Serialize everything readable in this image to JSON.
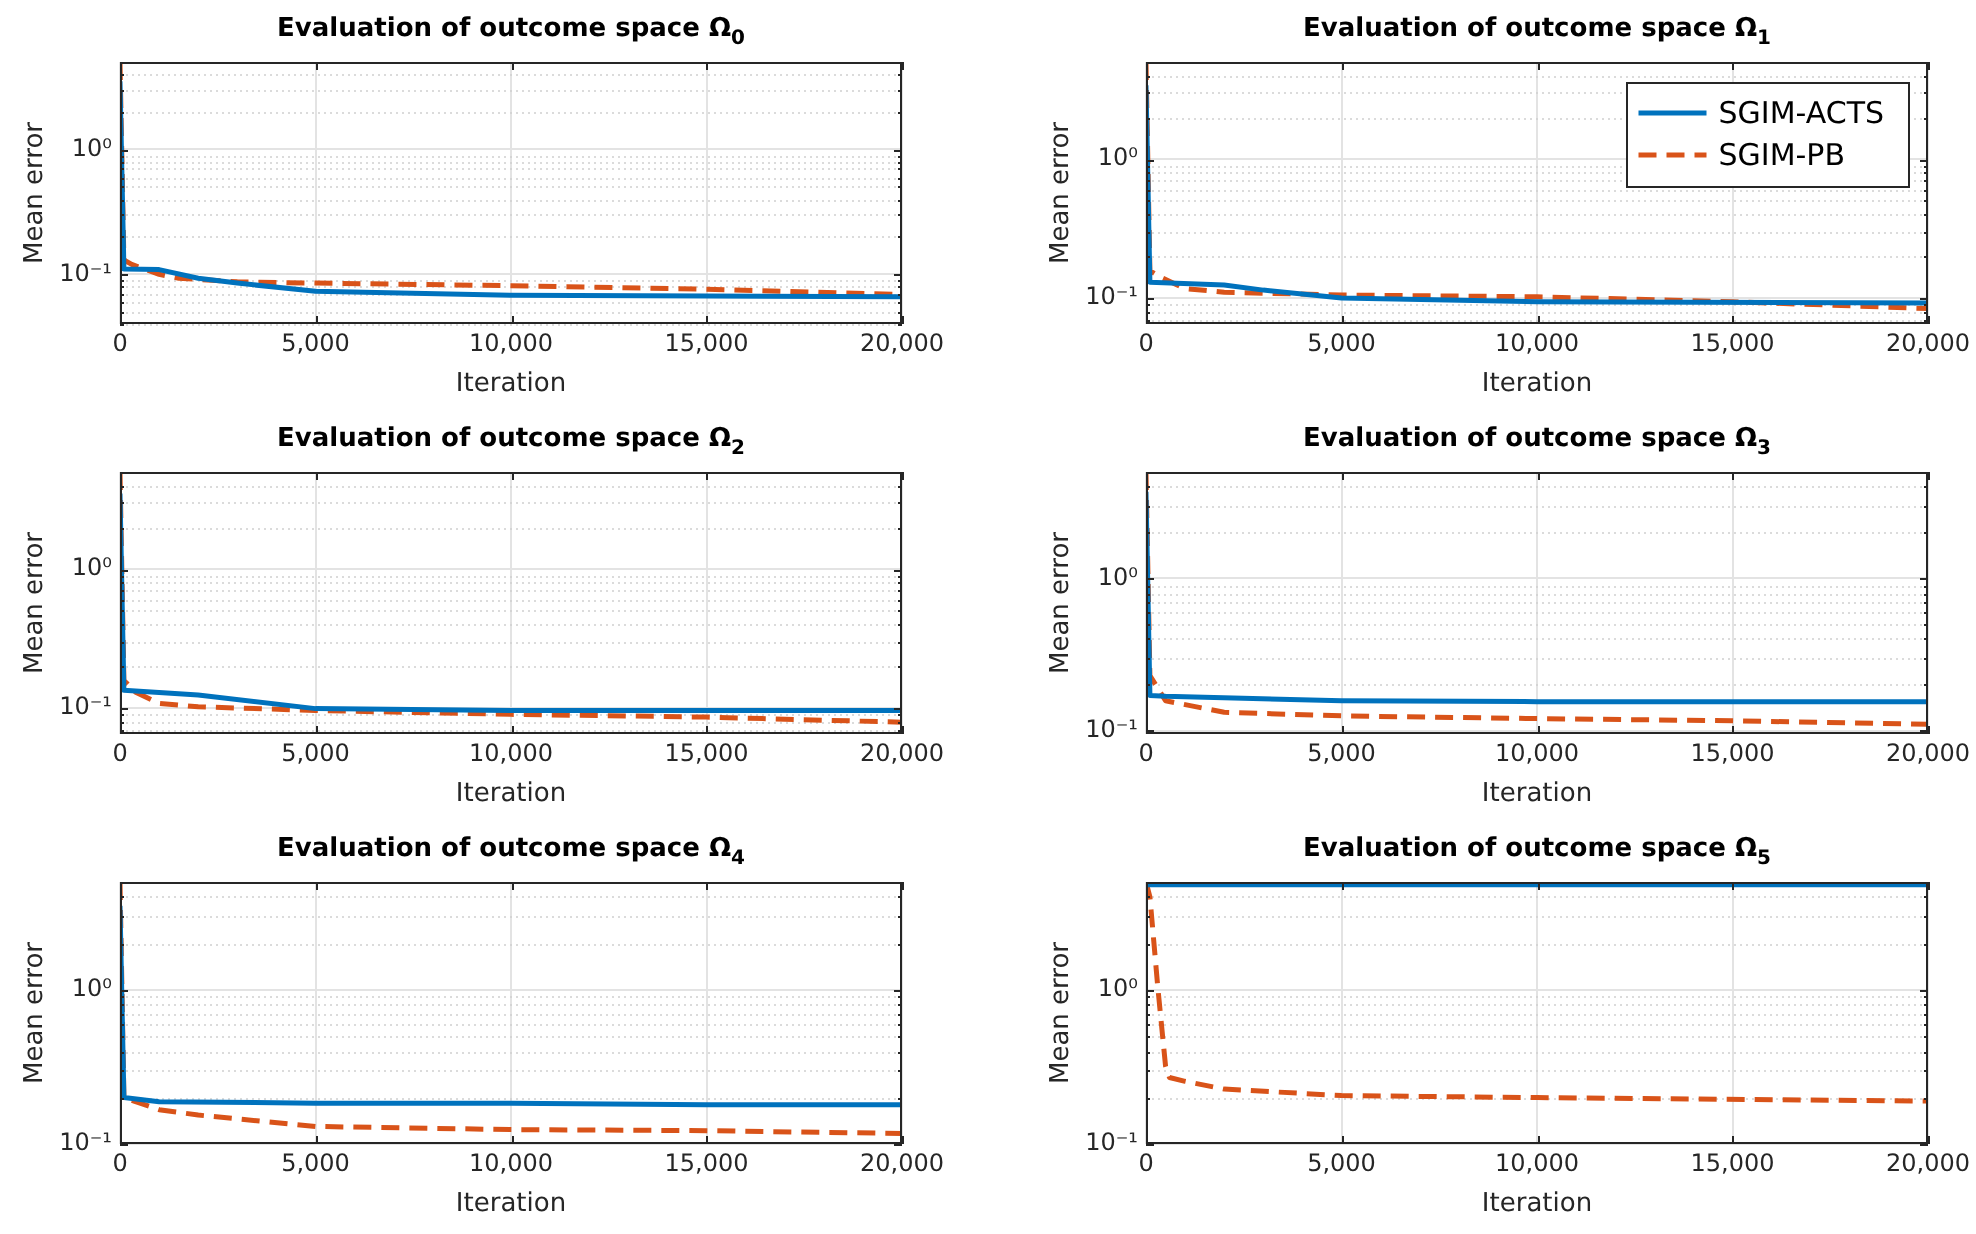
{
  "chart_data": [
    {
      "type": "line",
      "title": "Evaluation of outcome space Ω$_{0}$",
      "xlabel": "Iteration",
      "ylabel": "Mean error",
      "log": true,
      "grid": true,
      "legend": false,
      "xlim": [
        0,
        20000
      ],
      "xticks": [
        {
          "value": 0,
          "label": "0"
        },
        {
          "value": 5000,
          "label": "5,000"
        },
        {
          "value": 10000,
          "label": "10,000"
        },
        {
          "value": 15000,
          "label": "15,000"
        },
        {
          "value": 20000,
          "label": "20,000"
        }
      ],
      "ylim": [
        0.04,
        5
      ],
      "yticks": [
        {
          "value": 0.04,
          "label": null
        },
        {
          "value": 0.05,
          "label": null
        },
        {
          "value": 0.06,
          "label": null
        },
        {
          "value": 0.07,
          "label": null
        },
        {
          "value": 0.08,
          "label": null
        },
        {
          "value": 0.09,
          "label": null
        },
        {
          "value": 0.1,
          "label": "10⁻¹"
        },
        {
          "value": 0.2,
          "label": null
        },
        {
          "value": 0.3,
          "label": null
        },
        {
          "value": 0.4,
          "label": null
        },
        {
          "value": 0.5,
          "label": null
        },
        {
          "value": 0.6,
          "label": null
        },
        {
          "value": 0.7,
          "label": null
        },
        {
          "value": 0.8,
          "label": null
        },
        {
          "value": 0.9,
          "label": null
        },
        {
          "value": 1,
          "label": "10⁰"
        },
        {
          "value": 2,
          "label": null
        },
        {
          "value": 3,
          "label": null
        },
        {
          "value": 4,
          "label": null
        },
        {
          "value": 5,
          "label": null
        }
      ],
      "series": [
        {
          "color": "#0072bd",
          "line_style": "solid",
          "x": [
            0,
            100,
            1000,
            2000,
            3000,
            5000,
            10000,
            15000,
            20000
          ],
          "values": [
            3.5,
            0.11,
            0.109,
            0.093,
            0.085,
            0.073,
            0.068,
            0.067,
            0.066
          ]
        },
        {
          "color": "#d95319",
          "line_style": "dashed",
          "x": [
            0,
            100,
            300,
            1000,
            1500,
            3000,
            5000,
            10000,
            15000,
            20000
          ],
          "values": [
            5,
            0.13,
            0.12,
            0.1,
            0.093,
            0.087,
            0.085,
            0.081,
            0.076,
            0.069
          ]
        }
      ]
    },
    {
      "type": "line",
      "title": "Evaluation of outcome space Ω$_{1}$",
      "xlabel": "Iteration",
      "ylabel": "Mean error",
      "log": true,
      "grid": true,
      "legend": "top right",
      "xlim": [
        0,
        20000
      ],
      "xticks": [
        {
          "value": 0,
          "label": "0"
        },
        {
          "value": 5000,
          "label": "5,000"
        },
        {
          "value": 10000,
          "label": "10,000"
        },
        {
          "value": 15000,
          "label": "15,000"
        },
        {
          "value": 20000,
          "label": "20,000"
        }
      ],
      "ylim": [
        0.065,
        5
      ],
      "yticks": [
        {
          "value": 0.07,
          "label": null
        },
        {
          "value": 0.08,
          "label": null
        },
        {
          "value": 0.09,
          "label": null
        },
        {
          "value": 0.1,
          "label": "10⁻¹"
        },
        {
          "value": 0.2,
          "label": null
        },
        {
          "value": 0.3,
          "label": null
        },
        {
          "value": 0.4,
          "label": null
        },
        {
          "value": 0.5,
          "label": null
        },
        {
          "value": 0.6,
          "label": null
        },
        {
          "value": 0.7,
          "label": null
        },
        {
          "value": 0.8,
          "label": null
        },
        {
          "value": 0.9,
          "label": null
        },
        {
          "value": 1,
          "label": "10⁰"
        },
        {
          "value": 2,
          "label": null
        },
        {
          "value": 3,
          "label": null
        },
        {
          "value": 4,
          "label": null
        },
        {
          "value": 5,
          "label": null
        }
      ],
      "series": [
        {
          "name": "SGIM-ACTS",
          "color": "#0072bd",
          "line_style": "solid",
          "x": [
            0,
            100,
            2000,
            3000,
            5000,
            10000,
            20000
          ],
          "values": [
            3.4,
            0.13,
            0.124,
            0.114,
            0.1,
            0.094,
            0.092
          ]
        },
        {
          "name": "SGIM-PB",
          "color": "#d95319",
          "line_style": "dashed",
          "x": [
            0,
            100,
            400,
            1000,
            2000,
            5000,
            10000,
            15000,
            20000
          ],
          "values": [
            5,
            0.157,
            0.14,
            0.117,
            0.11,
            0.105,
            0.102,
            0.094,
            0.084
          ]
        }
      ]
    },
    {
      "type": "line",
      "title": "Evaluation of outcome space Ω$_{2}$",
      "xlabel": "Iteration",
      "ylabel": "Mean error",
      "log": true,
      "grid": true,
      "legend": false,
      "xlim": [
        0,
        20000
      ],
      "xticks": [
        {
          "value": 0,
          "label": "0"
        },
        {
          "value": 5000,
          "label": "5,000"
        },
        {
          "value": 10000,
          "label": "10,000"
        },
        {
          "value": 15000,
          "label": "15,000"
        },
        {
          "value": 20000,
          "label": "20,000"
        }
      ],
      "ylim": [
        0.065,
        5
      ],
      "yticks": [
        {
          "value": 0.07,
          "label": null
        },
        {
          "value": 0.08,
          "label": null
        },
        {
          "value": 0.09,
          "label": null
        },
        {
          "value": 0.1,
          "label": "10⁻¹"
        },
        {
          "value": 0.2,
          "label": null
        },
        {
          "value": 0.3,
          "label": null
        },
        {
          "value": 0.4,
          "label": null
        },
        {
          "value": 0.5,
          "label": null
        },
        {
          "value": 0.6,
          "label": null
        },
        {
          "value": 0.7,
          "label": null
        },
        {
          "value": 0.8,
          "label": null
        },
        {
          "value": 0.9,
          "label": null
        },
        {
          "value": 1,
          "label": "10⁰"
        },
        {
          "value": 2,
          "label": null
        },
        {
          "value": 3,
          "label": null
        },
        {
          "value": 4,
          "label": null
        },
        {
          "value": 5,
          "label": null
        }
      ],
      "series": [
        {
          "color": "#0072bd",
          "line_style": "solid",
          "x": [
            0,
            100,
            2000,
            5000,
            10000,
            20000
          ],
          "values": [
            3.5,
            0.134,
            0.124,
            0.099,
            0.096,
            0.096
          ]
        },
        {
          "color": "#d95319",
          "line_style": "dashed",
          "x": [
            0,
            100,
            400,
            1000,
            2000,
            5000,
            10000,
            15000,
            20000
          ],
          "values": [
            5,
            0.158,
            0.13,
            0.108,
            0.102,
            0.096,
            0.09,
            0.086,
            0.079
          ]
        }
      ]
    },
    {
      "type": "line",
      "title": "Evaluation of outcome space Ω$_{3}$",
      "xlabel": "Iteration",
      "ylabel": "Mean error",
      "log": true,
      "grid": true,
      "legend": false,
      "xlim": [
        0,
        20000
      ],
      "xticks": [
        {
          "value": 0,
          "label": "0"
        },
        {
          "value": 5000,
          "label": "5,000"
        },
        {
          "value": 10000,
          "label": "10,000"
        },
        {
          "value": 15000,
          "label": "15,000"
        },
        {
          "value": 20000,
          "label": "20,000"
        }
      ],
      "ylim": [
        0.095,
        5
      ],
      "yticks": [
        {
          "value": 0.1,
          "label": "10⁻¹"
        },
        {
          "value": 0.2,
          "label": null
        },
        {
          "value": 0.3,
          "label": null
        },
        {
          "value": 0.4,
          "label": null
        },
        {
          "value": 0.5,
          "label": null
        },
        {
          "value": 0.6,
          "label": null
        },
        {
          "value": 0.7,
          "label": null
        },
        {
          "value": 0.8,
          "label": null
        },
        {
          "value": 0.9,
          "label": null
        },
        {
          "value": 1,
          "label": "10⁰"
        },
        {
          "value": 2,
          "label": null
        },
        {
          "value": 3,
          "label": null
        },
        {
          "value": 4,
          "label": null
        },
        {
          "value": 5,
          "label": null
        }
      ],
      "series": [
        {
          "color": "#0072bd",
          "line_style": "solid",
          "x": [
            0,
            100,
            500,
            5000,
            10000,
            20000
          ],
          "values": [
            3.7,
            0.17,
            0.168,
            0.157,
            0.155,
            0.155
          ]
        },
        {
          "color": "#d95319",
          "line_style": "dashed",
          "x": [
            0,
            100,
            500,
            2000,
            5000,
            10000,
            15000,
            20000
          ],
          "values": [
            5,
            0.23,
            0.157,
            0.132,
            0.125,
            0.12,
            0.116,
            0.11
          ]
        }
      ]
    },
    {
      "type": "line",
      "title": "Evaluation of outcome space Ω$_{4}$",
      "xlabel": "Iteration",
      "ylabel": "Mean error",
      "log": true,
      "grid": true,
      "legend": false,
      "xlim": [
        0,
        20000
      ],
      "xticks": [
        {
          "value": 0,
          "label": "0"
        },
        {
          "value": 5000,
          "label": "5,000"
        },
        {
          "value": 10000,
          "label": "10,000"
        },
        {
          "value": 15000,
          "label": "15,000"
        },
        {
          "value": 20000,
          "label": "20,000"
        }
      ],
      "ylim": [
        0.1,
        5
      ],
      "yticks": [
        {
          "value": 0.1,
          "label": "10⁻¹"
        },
        {
          "value": 0.2,
          "label": null
        },
        {
          "value": 0.3,
          "label": null
        },
        {
          "value": 0.4,
          "label": null
        },
        {
          "value": 0.5,
          "label": null
        },
        {
          "value": 0.6,
          "label": null
        },
        {
          "value": 0.7,
          "label": null
        },
        {
          "value": 0.8,
          "label": null
        },
        {
          "value": 0.9,
          "label": null
        },
        {
          "value": 1,
          "label": "10⁰"
        },
        {
          "value": 2,
          "label": null
        },
        {
          "value": 3,
          "label": null
        },
        {
          "value": 4,
          "label": null
        },
        {
          "value": 5,
          "label": null
        }
      ],
      "series": [
        {
          "color": "#0072bd",
          "line_style": "solid",
          "x": [
            0,
            100,
            1000,
            5000,
            10000,
            15000,
            20000
          ],
          "values": [
            3.5,
            0.2,
            0.188,
            0.184,
            0.184,
            0.18,
            0.18
          ]
        },
        {
          "color": "#d95319",
          "line_style": "dashed",
          "x": [
            0,
            100,
            1000,
            2000,
            5000,
            10000,
            15000,
            20000
          ],
          "values": [
            5,
            0.2,
            0.167,
            0.154,
            0.13,
            0.124,
            0.122,
            0.117
          ]
        }
      ]
    },
    {
      "type": "line",
      "title": "Evaluation of outcome space Ω$_{5}$",
      "xlabel": "Iteration",
      "ylabel": "Mean error",
      "log": true,
      "grid": true,
      "legend": false,
      "xlim": [
        0,
        20000
      ],
      "xticks": [
        {
          "value": 0,
          "label": "0"
        },
        {
          "value": 5000,
          "label": "5,000"
        },
        {
          "value": 10000,
          "label": "10,000"
        },
        {
          "value": 15000,
          "label": "15,000"
        },
        {
          "value": 20000,
          "label": "20,000"
        }
      ],
      "ylim": [
        0.1,
        5
      ],
      "yticks": [
        {
          "value": 0.1,
          "label": "10⁻¹"
        },
        {
          "value": 0.2,
          "label": null
        },
        {
          "value": 0.3,
          "label": null
        },
        {
          "value": 0.4,
          "label": null
        },
        {
          "value": 0.5,
          "label": null
        },
        {
          "value": 0.6,
          "label": null
        },
        {
          "value": 0.7,
          "label": null
        },
        {
          "value": 0.8,
          "label": null
        },
        {
          "value": 0.9,
          "label": null
        },
        {
          "value": 1,
          "label": "10⁰"
        },
        {
          "value": 2,
          "label": null
        },
        {
          "value": 3,
          "label": null
        },
        {
          "value": 4,
          "label": null
        },
        {
          "value": 5,
          "label": null
        }
      ],
      "series": [
        {
          "color": "#0072bd",
          "line_style": "solid",
          "x": [
            0,
            20000
          ],
          "values": [
            4.8,
            4.8
          ]
        },
        {
          "color": "#d95319",
          "line_style": "dashed",
          "x": [
            0,
            100,
            300,
            500,
            600,
            1000,
            2000,
            5000,
            10000,
            20000
          ],
          "values": [
            5,
            4.0,
            1.05,
            0.32,
            0.27,
            0.255,
            0.227,
            0.206,
            0.2,
            0.19
          ]
        }
      ]
    }
  ]
}
